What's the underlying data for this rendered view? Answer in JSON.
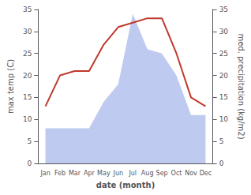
{
  "chart_data": {
    "type": "line",
    "xlabel": "date (month)",
    "ylabel": "max temp (C)",
    "y2label": "med. precipitation (kg/m2)",
    "categories": [
      "Jan",
      "Feb",
      "Mar",
      "Apr",
      "May",
      "Jun",
      "Jul",
      "Aug",
      "Sep",
      "Oct",
      "Nov",
      "Dec"
    ],
    "series": [
      {
        "type": "area",
        "axis": "y2",
        "color": "#b8c4f0",
        "values": [
          8,
          8,
          8,
          8,
          14,
          18,
          34,
          26,
          25,
          20,
          11,
          11
        ]
      },
      {
        "type": "line",
        "color": "#c0392b",
        "values": [
          13,
          20,
          21,
          21,
          27,
          31,
          32,
          33,
          33,
          25,
          15,
          13
        ]
      }
    ],
    "ylim": [
      0,
      35
    ],
    "yticks": [
      0,
      5,
      10,
      15,
      20,
      25,
      30,
      35
    ],
    "y2lim": [
      0,
      35
    ],
    "y2ticks": [
      0,
      5,
      10,
      15,
      20,
      25,
      30,
      35
    ],
    "grid": false
  }
}
